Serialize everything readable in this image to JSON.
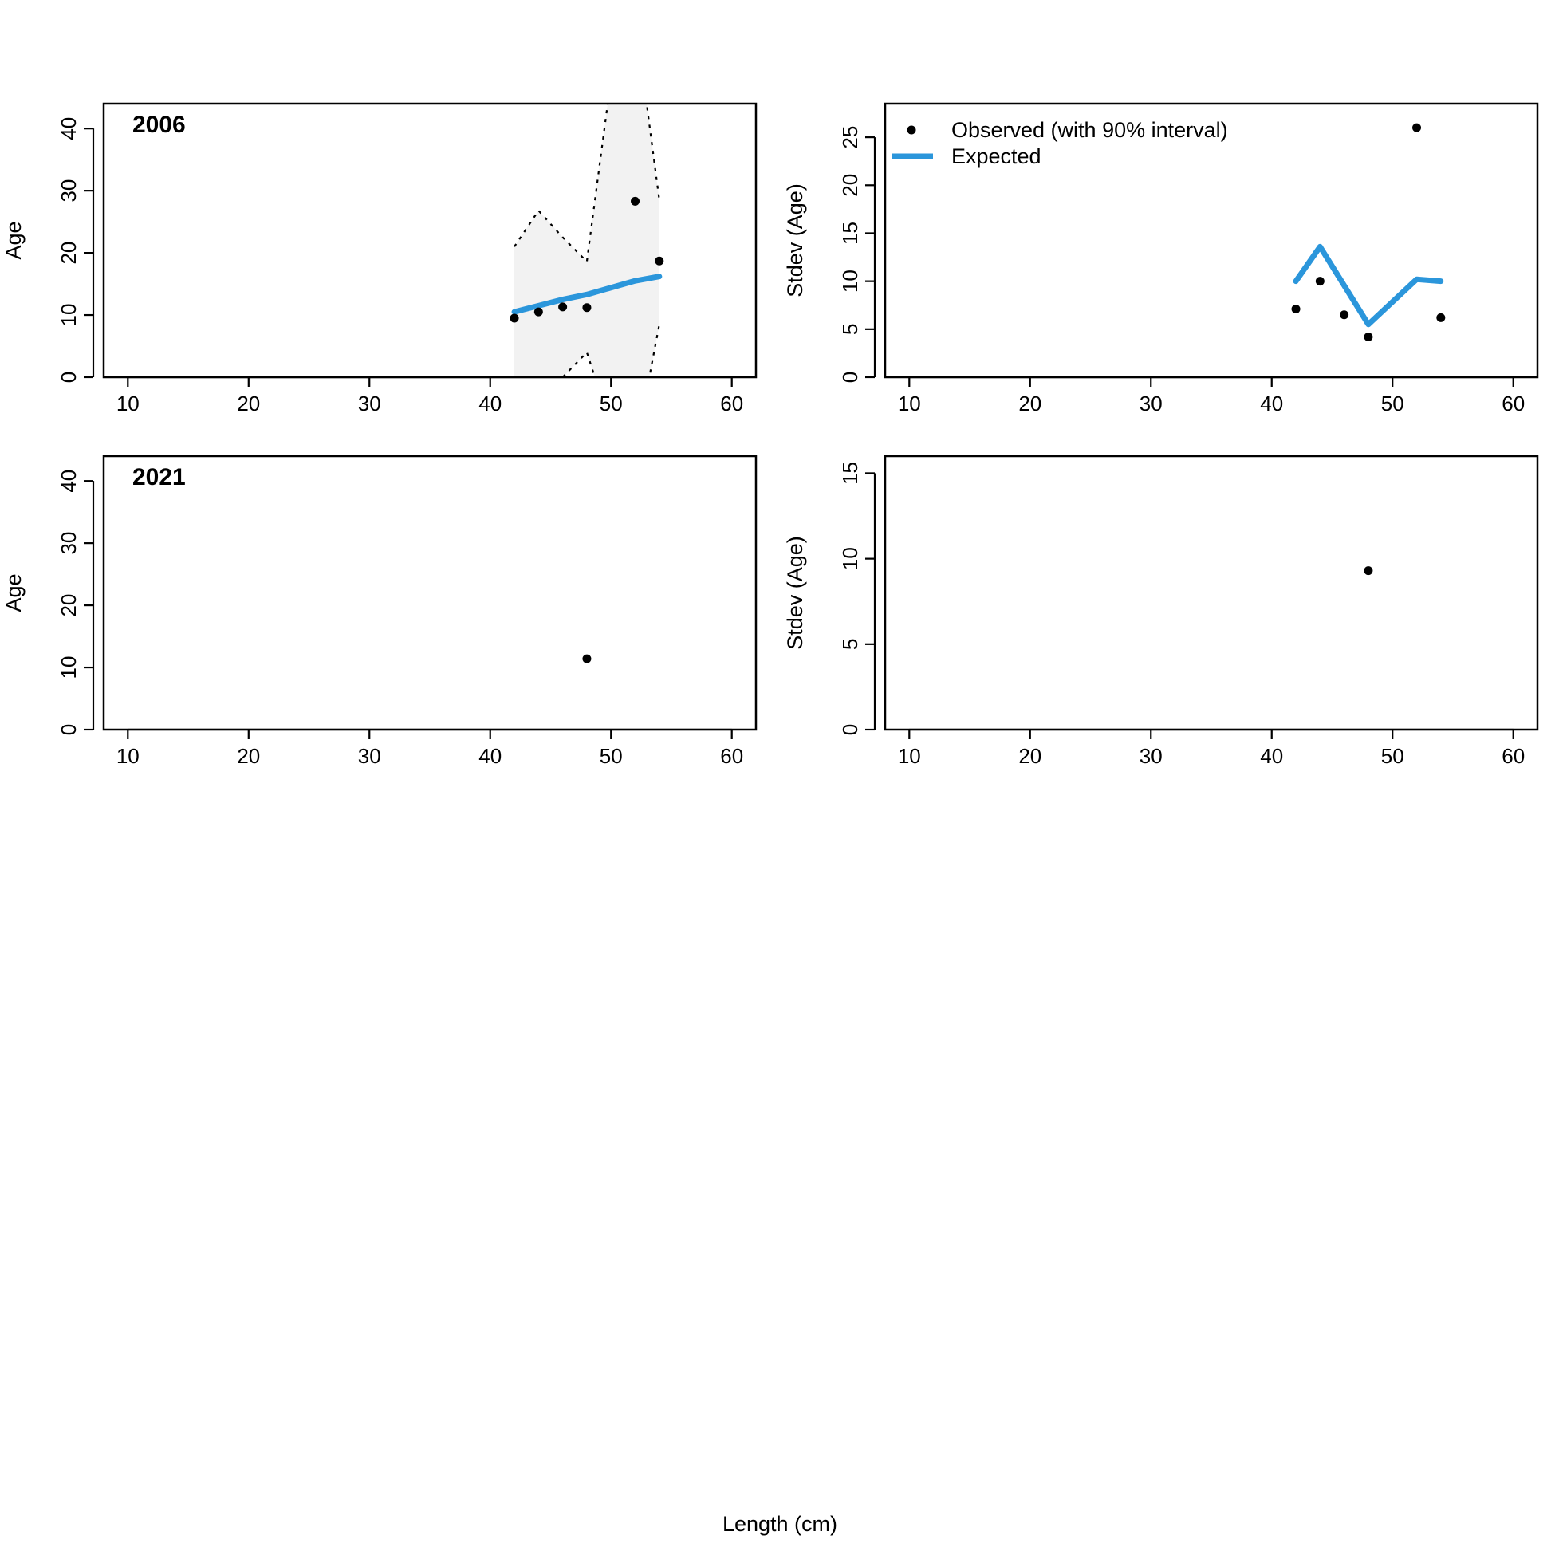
{
  "figure": {
    "xlabel": "Length (cm)"
  },
  "legend": {
    "observed_label": "Observed (with 90% interval)",
    "expected_label": "Expected"
  },
  "colors": {
    "expected_line": "#2b96db",
    "interval_fill": "#f2f2f2",
    "points": "#000000"
  },
  "chart_data": [
    {
      "type": "line",
      "panel": "mean-age",
      "year_label": "2006",
      "ylabel": "Age",
      "xlim": [
        8,
        62
      ],
      "ylim": [
        0,
        44
      ],
      "xticks": [
        10,
        20,
        30,
        40,
        50,
        60
      ],
      "yticks": [
        0,
        10,
        20,
        30,
        40
      ],
      "observed": {
        "x": [
          42,
          44,
          46,
          48,
          52,
          54
        ],
        "y": [
          9.5,
          10.5,
          11.3,
          11.2,
          28.3,
          18.7
        ]
      },
      "expected": {
        "x": [
          42,
          44,
          46,
          48,
          50,
          52,
          54
        ],
        "y": [
          10.5,
          11.5,
          12.5,
          13.3,
          14.4,
          15.5,
          16.2
        ]
      },
      "interval": {
        "x": [
          42,
          44,
          46,
          48,
          50,
          52,
          54
        ],
        "lower": [
          -2,
          -5,
          0,
          4,
          -8,
          -12,
          8.5
        ],
        "upper": [
          21,
          26.8,
          22.5,
          18.6,
          48,
          58,
          28.5
        ]
      }
    },
    {
      "type": "line",
      "panel": "stdev-age",
      "ylabel": "Stdev (Age)",
      "xlim": [
        8,
        62
      ],
      "ylim": [
        0,
        28.5
      ],
      "xticks": [
        10,
        20,
        30,
        40,
        50,
        60
      ],
      "yticks": [
        0,
        5,
        10,
        15,
        20,
        25
      ],
      "observed": {
        "x": [
          42,
          44,
          46,
          48,
          52,
          54
        ],
        "y": [
          7.1,
          10.0,
          6.5,
          4.2,
          26.0,
          6.2
        ]
      },
      "expected": {
        "x": [
          42,
          44,
          48,
          52,
          54
        ],
        "y": [
          10.0,
          13.6,
          5.5,
          10.2,
          10.0
        ]
      }
    },
    {
      "type": "scatter",
      "panel": "mean-age",
      "year_label": "2021",
      "ylabel": "Age",
      "xlim": [
        8,
        62
      ],
      "ylim": [
        0,
        44
      ],
      "xticks": [
        10,
        20,
        30,
        40,
        50,
        60
      ],
      "yticks": [
        0,
        10,
        20,
        30,
        40
      ],
      "observed": {
        "x": [
          48
        ],
        "y": [
          11.4
        ]
      }
    },
    {
      "type": "scatter",
      "panel": "stdev-age",
      "ylabel": "Stdev (Age)",
      "xlim": [
        8,
        62
      ],
      "ylim": [
        0,
        16
      ],
      "xticks": [
        10,
        20,
        30,
        40,
        50,
        60
      ],
      "yticks": [
        0,
        5,
        10,
        15
      ],
      "observed": {
        "x": [
          48
        ],
        "y": [
          9.3
        ]
      }
    }
  ]
}
